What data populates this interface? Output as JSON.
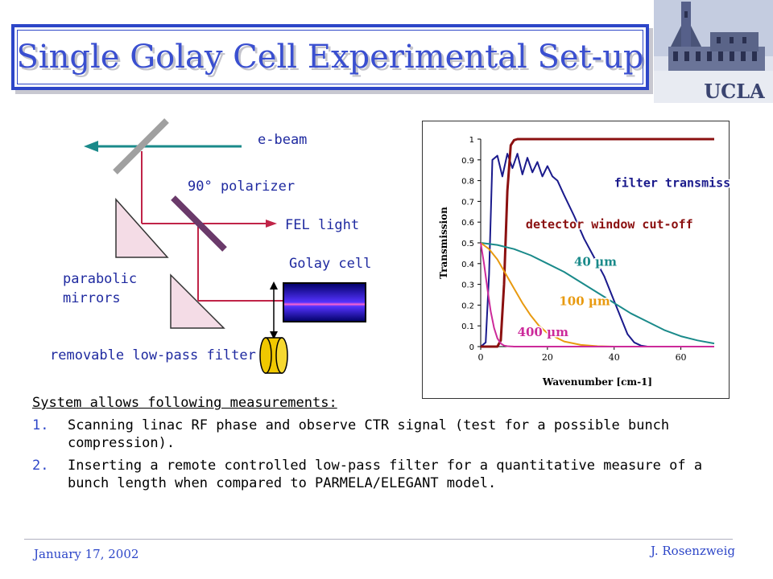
{
  "title": "Single Golay Cell Experimental Set-up",
  "logo_text": "UCLA",
  "diagram": {
    "ebeam": "e-beam",
    "polarizer": "90° polarizer",
    "fel_light": "FEL light",
    "golay_cell": "Golay cell",
    "parabolic_line1": "parabolic",
    "parabolic_line2": "mirrors",
    "filter": "removable low-pass filter"
  },
  "chart_data": {
    "type": "line",
    "xlabel": "Wavenumber [cm-1]",
    "ylabel": "Transmission",
    "xlim": [
      0,
      70
    ],
    "ylim": [
      0,
      1
    ],
    "xticks": [
      "0",
      "20",
      "40",
      "60"
    ],
    "yticks": [
      "0",
      "0.1",
      "0.2",
      "0.3",
      "0.4",
      "0.5",
      "0.6",
      "0.7",
      "0.8",
      "0.9",
      "1"
    ],
    "series": [
      {
        "name": "filter transmission",
        "color": "#1a1a8c",
        "x": [
          0,
          1.5,
          2.5,
          3.5,
          5,
          6.5,
          8,
          9.5,
          11,
          12.5,
          14,
          15.5,
          17,
          18.5,
          20,
          21.5,
          23,
          25,
          28,
          31,
          34,
          37,
          40,
          42,
          44,
          46,
          48,
          50,
          52,
          55,
          60,
          70
        ],
        "y": [
          0,
          0.02,
          0.35,
          0.9,
          0.92,
          0.82,
          0.93,
          0.86,
          0.93,
          0.83,
          0.91,
          0.84,
          0.89,
          0.82,
          0.87,
          0.82,
          0.8,
          0.73,
          0.63,
          0.52,
          0.43,
          0.34,
          0.22,
          0.14,
          0.06,
          0.02,
          0.005,
          0,
          0,
          0,
          0,
          0
        ]
      },
      {
        "name": "detector window cut-off",
        "color": "#8b1010",
        "x": [
          0,
          5,
          6,
          7,
          8,
          9,
          10,
          11,
          70
        ],
        "y": [
          0,
          0,
          0.03,
          0.3,
          0.75,
          0.97,
          0.995,
          1,
          1
        ]
      },
      {
        "name": "40 µm",
        "color": "#1a8a8a",
        "x": [
          0,
          5,
          10,
          15,
          20,
          25,
          30,
          35,
          40,
          45,
          50,
          55,
          60,
          65,
          70
        ],
        "y": [
          0.5,
          0.49,
          0.47,
          0.44,
          0.4,
          0.36,
          0.31,
          0.26,
          0.21,
          0.16,
          0.12,
          0.08,
          0.05,
          0.03,
          0.015
        ]
      },
      {
        "name": "100 µm",
        "color": "#e89a10",
        "x": [
          0,
          2.5,
          5,
          7.5,
          10,
          12.5,
          15,
          17.5,
          20,
          25,
          30,
          35,
          40,
          50,
          70
        ],
        "y": [
          0.5,
          0.47,
          0.42,
          0.35,
          0.28,
          0.21,
          0.15,
          0.1,
          0.065,
          0.025,
          0.008,
          0.002,
          0,
          0,
          0
        ]
      },
      {
        "name": "400 µm",
        "color": "#cc2a9a",
        "x": [
          0,
          1,
          2,
          3,
          4,
          5,
          6,
          7,
          8,
          10,
          12,
          15,
          20,
          70
        ],
        "y": [
          0.5,
          0.4,
          0.28,
          0.17,
          0.09,
          0.04,
          0.015,
          0.005,
          0.002,
          0,
          0,
          0,
          0,
          0
        ]
      }
    ],
    "annotations": [
      {
        "text": "filter transmission",
        "x": 40,
        "y": 0.77,
        "color": "#1a1a8c"
      },
      {
        "text": "detector window cut-off",
        "x": 13.5,
        "y": 0.57,
        "color": "#8b1010"
      },
      {
        "text": "40 µm",
        "x": 28,
        "y": 0.39,
        "color": "#1a8a8a"
      },
      {
        "text": "100 µm",
        "x": 23.5,
        "y": 0.2,
        "color": "#e89a10"
      },
      {
        "text": "400 µm",
        "x": 11,
        "y": 0.05,
        "color": "#cc2a9a"
      }
    ]
  },
  "measurements": {
    "heading": "System allows following measurements:",
    "items": [
      {
        "num": "1.",
        "text": "Scanning linac RF phase and observe CTR signal (test for a possible bunch compression)."
      },
      {
        "num": "2.",
        "text": "Inserting a remote controlled low-pass filter for a quantitative measure of a bunch length when compared to PARMELA/ELEGANT model."
      }
    ]
  },
  "footer": {
    "date": "January 17, 2002",
    "author": "J. Rosenzweig"
  }
}
